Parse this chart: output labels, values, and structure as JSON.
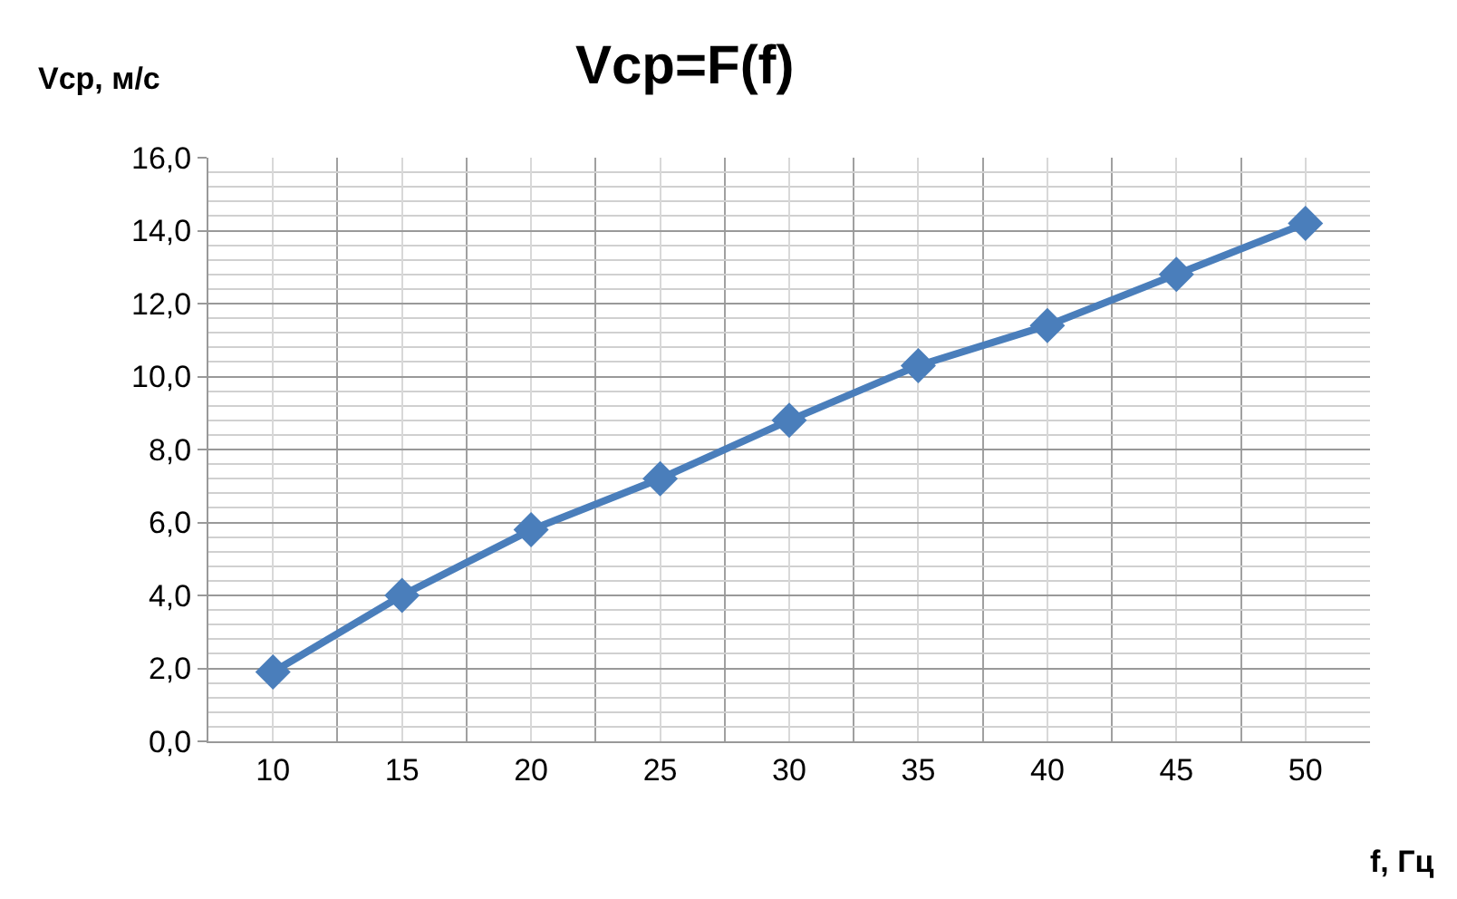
{
  "chart_data": {
    "type": "line",
    "title": "Vcp=F(f)",
    "xlabel": "f, Гц",
    "ylabel": "Vcp, м/с",
    "categories": [
      "10",
      "15",
      "20",
      "25",
      "30",
      "35",
      "40",
      "45",
      "50"
    ],
    "series": [
      {
        "color": "#4a7ebb",
        "values": [
          1.9,
          4.0,
          5.8,
          7.2,
          8.8,
          10.3,
          11.4,
          12.8,
          14.2
        ]
      }
    ],
    "ylim": [
      0,
      16
    ],
    "yticks": [
      {
        "value": 0,
        "label": "0,0"
      },
      {
        "value": 2,
        "label": "2,0"
      },
      {
        "value": 4,
        "label": "4,0"
      },
      {
        "value": 6,
        "label": "6,0"
      },
      {
        "value": 8,
        "label": "8,0"
      },
      {
        "value": 10,
        "label": "10,0"
      },
      {
        "value": 12,
        "label": "12,0"
      },
      {
        "value": 14,
        "label": "14,0"
      },
      {
        "value": 16,
        "label": "16,0"
      }
    ],
    "grid": true,
    "marker": "diamond",
    "line_style": "solid"
  }
}
